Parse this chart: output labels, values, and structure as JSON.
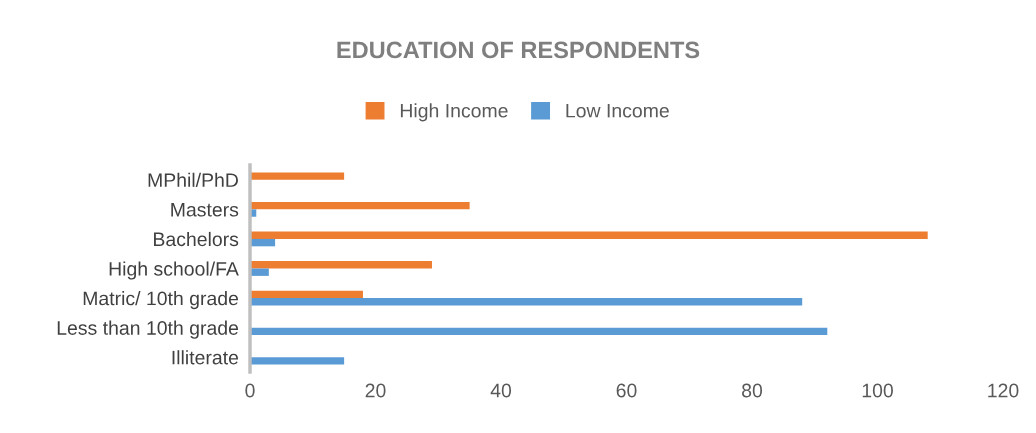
{
  "chart_data": {
    "type": "bar",
    "orientation": "horizontal",
    "title": "EDUCATION OF RESPONDENTS",
    "categories": [
      "MPhil/PhD",
      "Masters",
      "Bachelors",
      "High school/FA",
      "Matric/ 10th grade",
      "Less than 10th grade",
      "Illiterate"
    ],
    "series": [
      {
        "name": "High Income",
        "color": "#ed7d31",
        "values": [
          15,
          35,
          108,
          29,
          18,
          0,
          0
        ]
      },
      {
        "name": "Low Income",
        "color": "#5b9bd5",
        "values": [
          0,
          1,
          4,
          3,
          88,
          92,
          15
        ]
      }
    ],
    "xlim": [
      0,
      120
    ],
    "xticks": [
      0,
      20,
      40,
      60,
      80,
      100,
      120
    ],
    "grid": false,
    "legend": "top"
  }
}
